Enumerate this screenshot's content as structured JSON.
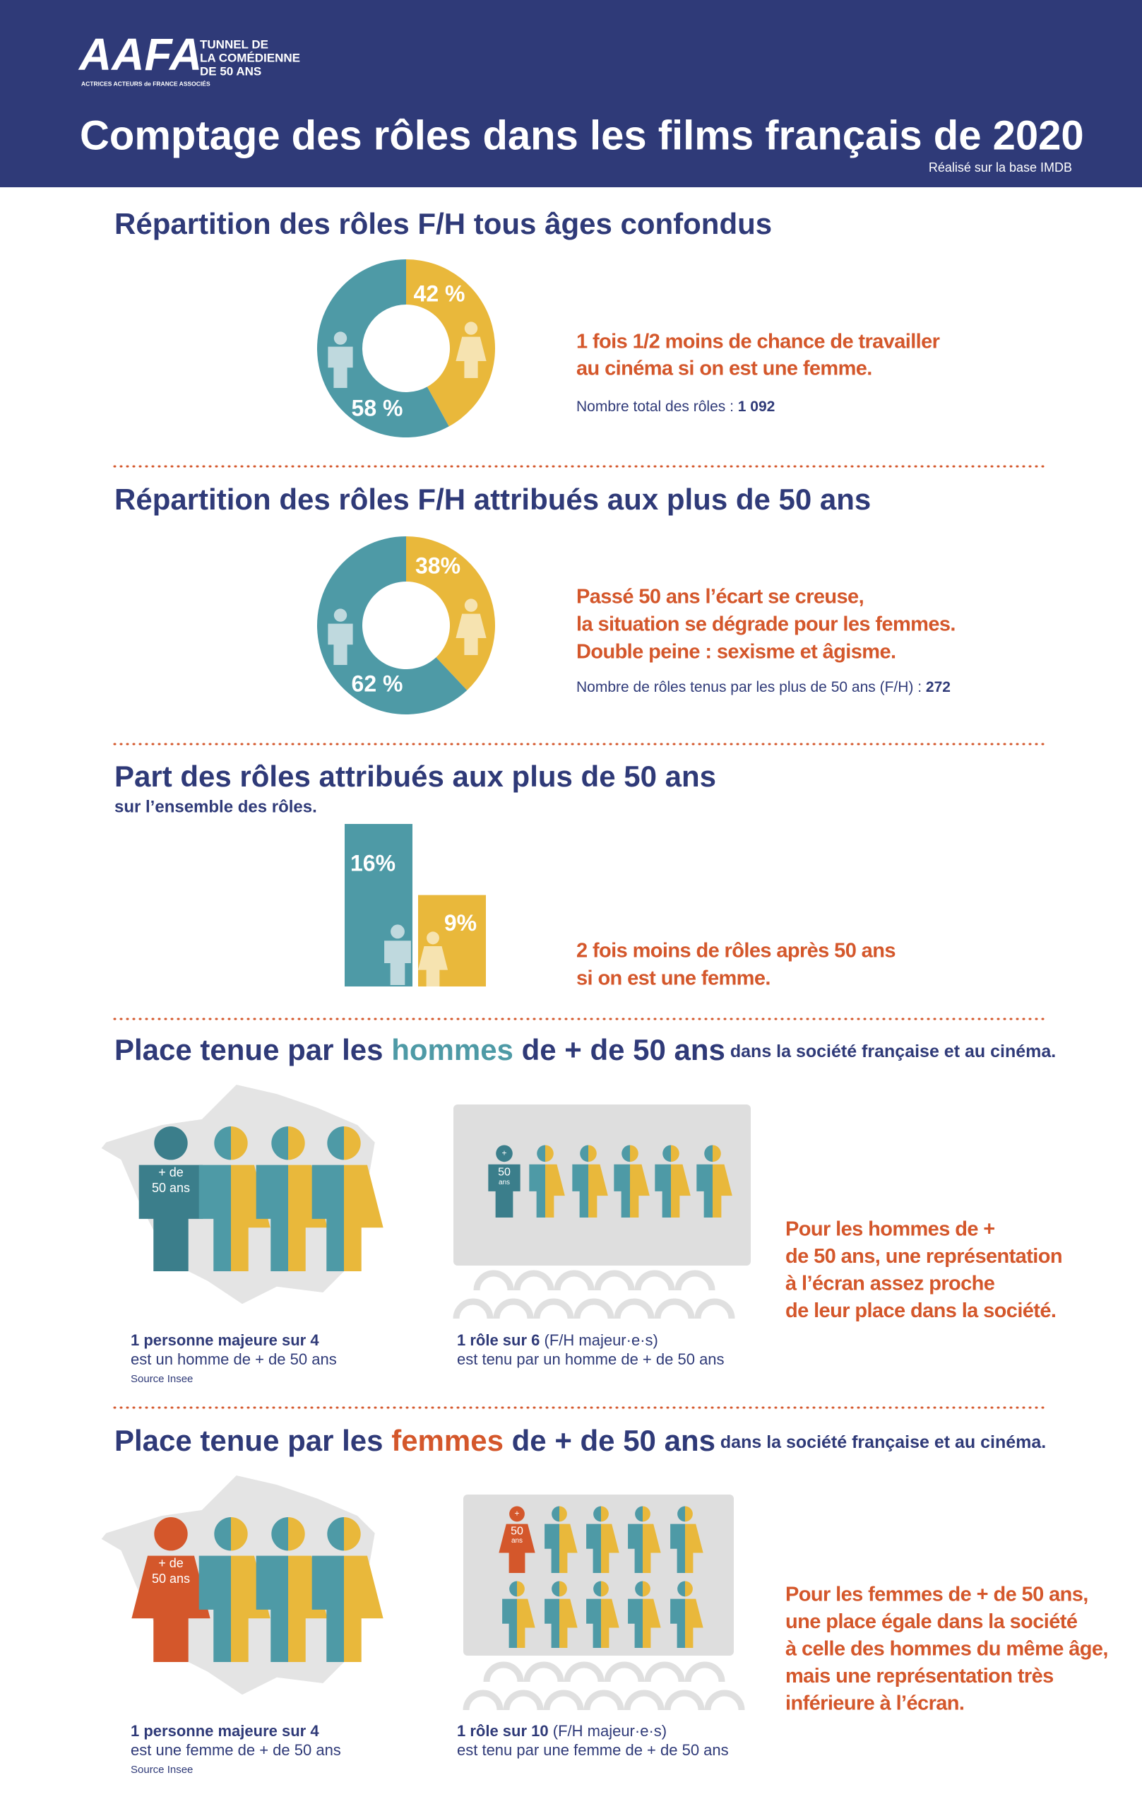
{
  "header": {
    "logo": "AAFA",
    "logo_lines": [
      "TUNNEL DE",
      "LA COMÉDIENNE",
      "DE 50 ANS"
    ],
    "logo_sub": "ACTRICES ACTEURS de FRANCE ASSOCIÉS",
    "title": "Comptage des rôles dans les films français de 2020",
    "source": "Réalisé sur la base IMDB"
  },
  "chart_data": [
    {
      "type": "pie",
      "title": "Répartition des rôles F/H tous âges confondus",
      "values": [
        42,
        58
      ],
      "value_labels": [
        "42 %",
        "58 %"
      ],
      "colors": [
        "#e9b83b",
        "#4e9aa6"
      ],
      "text": [
        "1 fois 1/2 moins de chance de travailler",
        "au cinéma si on est une femme."
      ],
      "note": "Nombre total des rôles : ",
      "note_value": "1 092"
    },
    {
      "type": "pie",
      "title": "Répartition des rôles F/H attribués aux plus de 50 ans",
      "values": [
        38,
        62
      ],
      "value_labels": [
        "38%",
        "62 %"
      ],
      "colors": [
        "#e9b83b",
        "#4e9aa6"
      ],
      "text": [
        "Passé 50 ans l’écart se creuse,",
        "la situation se dégrade pour les femmes.",
        "Double peine : sexisme et âgisme."
      ],
      "note": "Nombre de rôles tenus par les plus de 50 ans (F/H) : ",
      "note_value": "272"
    },
    {
      "type": "bar",
      "title": "Part des rôles attribués aux plus de 50 ans",
      "subtitle": "sur l’ensemble des rôles.",
      "values": [
        16,
        9
      ],
      "value_labels": [
        "16%",
        "9%"
      ],
      "colors": [
        "#4e9aa6",
        "#e9b83b"
      ],
      "text": [
        "2 fois moins de rôles après 50 ans",
        "si on est une femme."
      ]
    }
  ],
  "sections": [
    {
      "title": [
        "Place tenue par les ",
        "hommes",
        " de + de 50 ans",
        " dans la société française et au cinéma."
      ],
      "accent": "#3b7e8b",
      "figure_label": [
        "+ de",
        "50 ans"
      ],
      "screen_label": [
        "+",
        "50",
        "ans"
      ],
      "caption_1": {
        "bold": "1 personne majeure sur 4",
        "text": "est un homme de + de 50 ans",
        "source": "Source Insee"
      },
      "caption_2": {
        "bold": "1 rôle sur 6",
        "extra": " (F/H majeur·e·s)",
        "text": "est tenu par un homme de + de 50 ans"
      },
      "text": [
        "Pour les hommes de +",
        "de 50 ans, une représentation",
        "à l’écran assez proche",
        "de leur place dans la société."
      ]
    },
    {
      "title": [
        "Place tenue par les ",
        "femmes",
        " de + de 50 ans",
        " dans la société française et au cinéma."
      ],
      "accent": "#d4572b",
      "figure_label": [
        "+ de",
        "50 ans"
      ],
      "screen_label": [
        "+",
        "50",
        "ans"
      ],
      "caption_1": {
        "bold": "1 personne majeure sur 4",
        "text": "est une femme de + de 50 ans",
        "source": "Source Insee"
      },
      "caption_2": {
        "bold": "1 rôle sur 10",
        "extra": " (F/H majeur·e·s)",
        "text": "est tenu par une femme de + de 50 ans"
      },
      "text": [
        "Pour les femmes de + de 50 ans,",
        "une place égale dans la société",
        "à celle des hommes du même âge,",
        "mais une représentation très",
        "inférieure à l’écran."
      ]
    }
  ]
}
